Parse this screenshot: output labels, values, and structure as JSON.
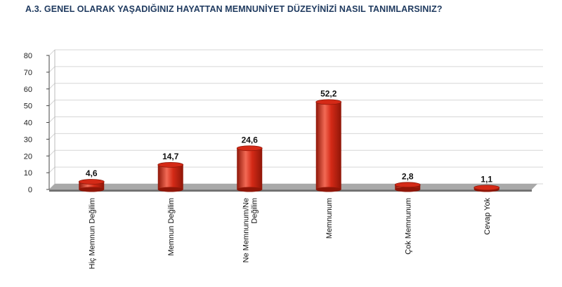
{
  "title": "A.3. GENEL OLARAK YAŞADIĞINIZ HAYATTAN MEMNUNİYET DÜZEYİNİZİ NASIL TANIMLARSINIZ?",
  "chart_data": {
    "type": "bar",
    "title": "A.3. GENEL OLARAK YAŞADIĞINIZ HAYATTAN MEMNUNİYET DÜZEYİNİZİ NASIL TANIMLARSINIZ?",
    "categories": [
      "Hiç Memnun Değilim",
      "Memnun Değilim",
      "Ne Memnunum/Ne Değilim",
      "Memnunum",
      "Çok Memnunum",
      "Cevap Yok"
    ],
    "category_lines": [
      [
        "Hiç Memnun Değilim"
      ],
      [
        "Memnun Değilim"
      ],
      [
        "Ne Memnunum/Ne",
        "Değilim"
      ],
      [
        "Memnunum"
      ],
      [
        "Çok Memnunum"
      ],
      [
        "Cevap Yok"
      ]
    ],
    "values": [
      4.6,
      14.7,
      24.6,
      52.2,
      2.8,
      1.1
    ],
    "value_labels": [
      "4,6",
      "14,7",
      "24,6",
      "52,2",
      "2,8",
      "1,1"
    ],
    "yticks": [
      "0",
      "10",
      "20",
      "30",
      "40",
      "50",
      "60",
      "70",
      "80"
    ],
    "ylim": [
      0,
      80
    ],
    "xlabel": "",
    "ylabel": "",
    "grid": true,
    "bar_color": "#d42a17",
    "bar_highlight": "#f26a55",
    "bar_dark": "#8f1608"
  }
}
